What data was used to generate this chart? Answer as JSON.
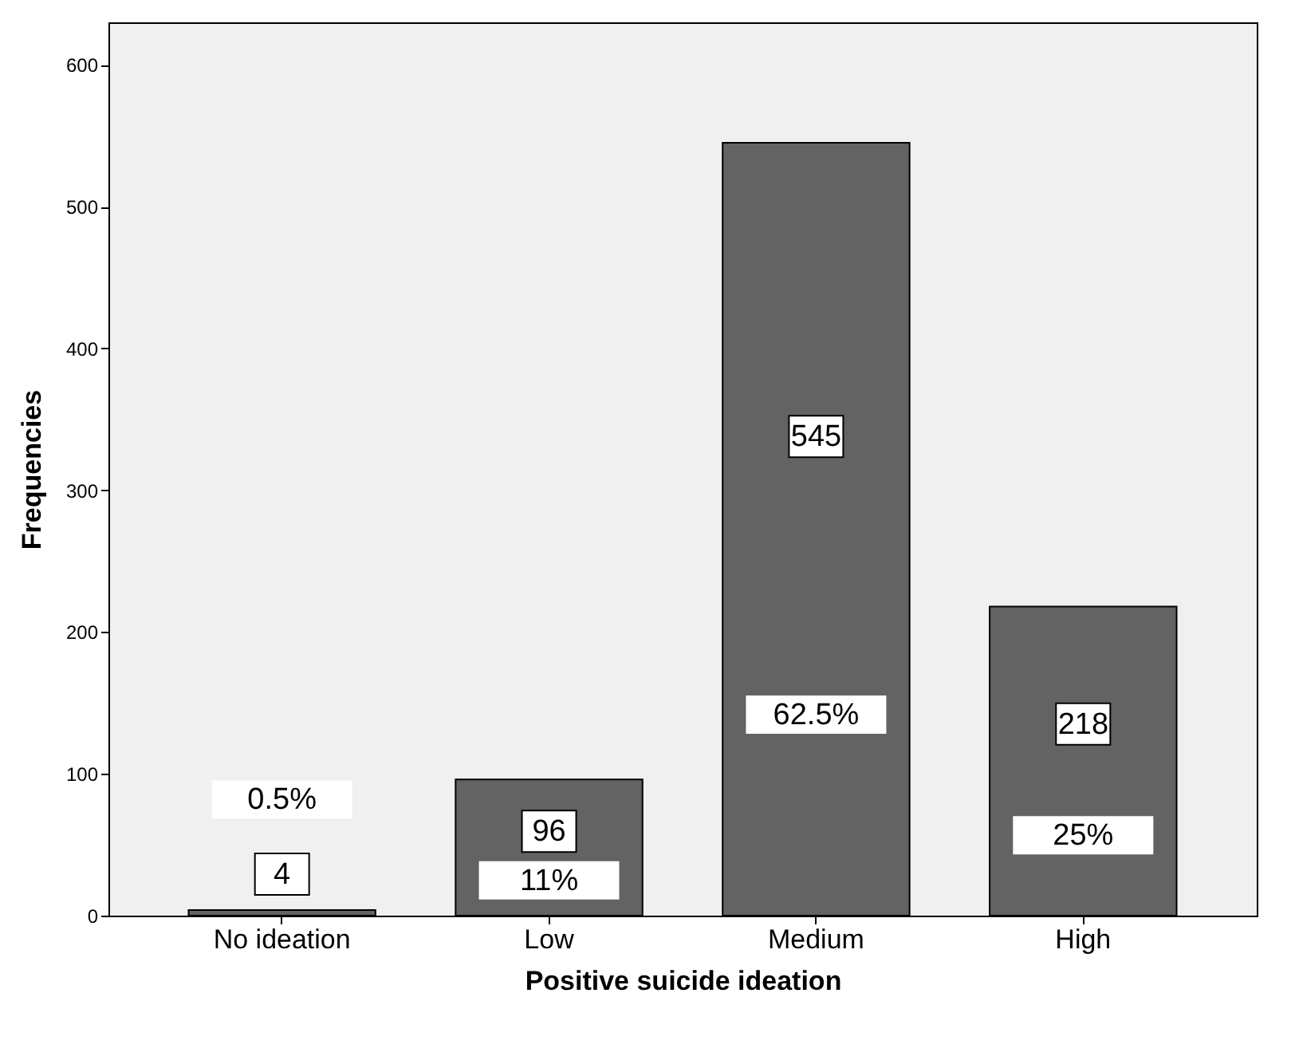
{
  "chart_data": {
    "type": "bar",
    "xlabel": "Positive suicide ideation",
    "ylabel": "Frequencies",
    "categories": [
      "No ideation",
      "Low",
      "Medium",
      "High"
    ],
    "values": [
      4,
      96,
      545,
      218
    ],
    "color": "#636363",
    "ylim": [
      0,
      630
    ],
    "yticks": [
      0,
      100,
      200,
      300,
      400,
      500,
      600
    ],
    "grid": false,
    "data_labels": true,
    "annotations": [
      "0.5%",
      "11%",
      "62.5%",
      "25%"
    ]
  }
}
